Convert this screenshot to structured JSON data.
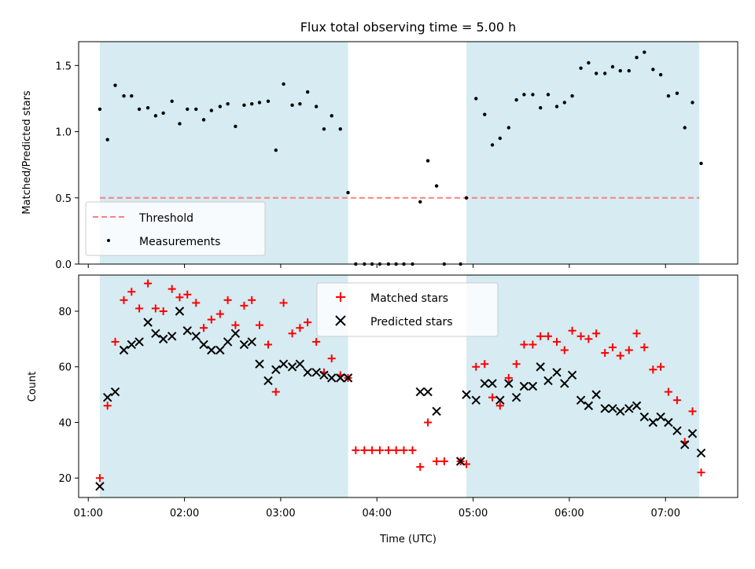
{
  "title": "Flux total observing time = 5.00 h",
  "colors": {
    "shade": "#add8e6",
    "threshold": "#ff7f7f",
    "matched": "#ff0000",
    "predicted": "#000000",
    "measurement": "#000000"
  },
  "chart_data": [
    {
      "type": "scatter",
      "ylabel": "Matched/Predicted stars",
      "xlim": [
        0.9,
        7.75
      ],
      "ylim": [
        0,
        1.68
      ],
      "yticks": [
        0.0,
        0.5,
        1.0,
        1.5
      ],
      "ytick_labels": [
        "0.0",
        "0.5",
        "1.0",
        "1.5"
      ],
      "shaded_intervals": [
        [
          1.12,
          3.7
        ],
        [
          4.93,
          7.35
        ]
      ],
      "threshold": {
        "name": "Threshold",
        "value": 0.5,
        "x_range": [
          1.12,
          7.35
        ]
      },
      "legend": [
        "Threshold",
        "Measurements"
      ],
      "legend_location": "lower-left",
      "series": [
        {
          "name": "Measurements",
          "x": [
            1.12,
            1.2,
            1.28,
            1.37,
            1.45,
            1.53,
            1.62,
            1.7,
            1.78,
            1.87,
            1.95,
            2.03,
            2.12,
            2.2,
            2.28,
            2.37,
            2.45,
            2.53,
            2.62,
            2.7,
            2.78,
            2.87,
            2.95,
            3.03,
            3.12,
            3.2,
            3.28,
            3.37,
            3.45,
            3.53,
            3.62,
            3.7,
            3.78,
            3.87,
            3.95,
            4.03,
            4.12,
            4.2,
            4.28,
            4.37,
            4.45,
            4.53,
            4.62,
            4.7,
            4.87,
            4.93,
            5.03,
            5.12,
            5.2,
            5.28,
            5.37,
            5.45,
            5.53,
            5.62,
            5.7,
            5.78,
            5.87,
            5.95,
            6.03,
            6.12,
            6.2,
            6.28,
            6.37,
            6.45,
            6.53,
            6.62,
            6.7,
            6.78,
            6.87,
            6.95,
            7.03,
            7.12,
            7.2,
            7.28,
            7.37
          ],
          "y": [
            1.17,
            0.94,
            1.35,
            1.27,
            1.27,
            1.17,
            1.18,
            1.12,
            1.14,
            1.23,
            1.06,
            1.17,
            1.17,
            1.09,
            1.16,
            1.19,
            1.21,
            1.04,
            1.2,
            1.21,
            1.22,
            1.23,
            0.86,
            1.36,
            1.2,
            1.21,
            1.3,
            1.19,
            1.02,
            1.12,
            1.02,
            0.54,
            0.0,
            0.0,
            0.0,
            0.0,
            0.0,
            0.0,
            0.0,
            0.0,
            0.47,
            0.78,
            0.59,
            0.0,
            0.0,
            0.5,
            1.25,
            1.13,
            0.9,
            0.95,
            1.03,
            1.24,
            1.28,
            1.28,
            1.18,
            1.28,
            1.19,
            1.22,
            1.27,
            1.48,
            1.52,
            1.44,
            1.44,
            1.49,
            1.46,
            1.46,
            1.56,
            1.6,
            1.47,
            1.43,
            1.27,
            1.29,
            1.03,
            1.22,
            0.76
          ]
        }
      ]
    },
    {
      "type": "scatter",
      "xlabel": "Time (UTC)",
      "ylabel": "Count",
      "xlim": [
        0.9,
        7.75
      ],
      "ylim": [
        13,
        93
      ],
      "xticks": [
        1,
        2,
        3,
        4,
        5,
        6,
        7
      ],
      "xtick_labels": [
        "01:00",
        "02:00",
        "03:00",
        "04:00",
        "05:00",
        "06:00",
        "07:00"
      ],
      "yticks": [
        20,
        40,
        60,
        80
      ],
      "ytick_labels": [
        "20",
        "40",
        "60",
        "80"
      ],
      "shaded_intervals": [
        [
          1.12,
          3.7
        ],
        [
          4.93,
          7.35
        ]
      ],
      "legend": [
        "Matched stars",
        "Predicted stars"
      ],
      "legend_location": "upper-center",
      "series": [
        {
          "name": "Matched stars",
          "x": [
            1.12,
            1.2,
            1.28,
            1.37,
            1.45,
            1.53,
            1.62,
            1.7,
            1.78,
            1.87,
            1.95,
            2.03,
            2.12,
            2.2,
            2.28,
            2.37,
            2.45,
            2.53,
            2.62,
            2.7,
            2.78,
            2.87,
            2.95,
            3.03,
            3.12,
            3.2,
            3.28,
            3.37,
            3.45,
            3.53,
            3.62,
            3.7,
            3.78,
            3.87,
            3.95,
            4.03,
            4.12,
            4.2,
            4.28,
            4.37,
            4.45,
            4.53,
            4.62,
            4.7,
            4.87,
            4.93,
            5.03,
            5.12,
            5.2,
            5.28,
            5.37,
            5.45,
            5.53,
            5.62,
            5.7,
            5.78,
            5.87,
            5.95,
            6.03,
            6.12,
            6.2,
            6.28,
            6.37,
            6.45,
            6.53,
            6.62,
            6.7,
            6.78,
            6.87,
            6.95,
            7.03,
            7.12,
            7.2,
            7.28,
            7.37
          ],
          "y": [
            20,
            46,
            69,
            84,
            87,
            81,
            90,
            81,
            80,
            88,
            85,
            86,
            83,
            74,
            77,
            79,
            84,
            75,
            82,
            84,
            75,
            68,
            51,
            83,
            72,
            74,
            76,
            69,
            58,
            63,
            57,
            56,
            30,
            30,
            30,
            30,
            30,
            30,
            30,
            30,
            24,
            40,
            26,
            26,
            26,
            25,
            60,
            61,
            49,
            46,
            56,
            61,
            68,
            68,
            71,
            71,
            69,
            66,
            73,
            71,
            70,
            72,
            65,
            67,
            64,
            66,
            72,
            67,
            59,
            60,
            51,
            48,
            33,
            44,
            22
          ]
        },
        {
          "name": "Predicted stars",
          "x": [
            1.12,
            1.2,
            1.28,
            1.37,
            1.45,
            1.53,
            1.62,
            1.7,
            1.78,
            1.87,
            1.95,
            2.03,
            2.12,
            2.2,
            2.28,
            2.37,
            2.45,
            2.53,
            2.62,
            2.7,
            2.78,
            2.87,
            2.95,
            3.03,
            3.12,
            3.2,
            3.28,
            3.37,
            3.45,
            3.53,
            3.62,
            3.7,
            4.45,
            4.53,
            4.62,
            4.87,
            4.93,
            5.03,
            5.12,
            5.2,
            5.28,
            5.37,
            5.45,
            5.53,
            5.62,
            5.7,
            5.78,
            5.87,
            5.95,
            6.03,
            6.12,
            6.2,
            6.28,
            6.37,
            6.45,
            6.53,
            6.62,
            6.7,
            6.78,
            6.87,
            6.95,
            7.03,
            7.12,
            7.2,
            7.28,
            7.37
          ],
          "y": [
            17,
            49,
            51,
            66,
            68,
            69,
            76,
            72,
            70,
            71,
            80,
            73,
            71,
            68,
            66,
            66,
            69,
            72,
            68,
            69,
            61,
            55,
            59,
            61,
            60,
            61,
            58,
            58,
            57,
            56,
            56,
            56,
            51,
            51,
            44,
            26,
            50,
            48,
            54,
            54,
            48,
            54,
            49,
            53,
            53,
            60,
            55,
            58,
            54,
            57,
            48,
            46,
            50,
            45,
            45,
            44,
            45,
            46,
            42,
            40,
            42,
            40,
            37,
            32,
            36,
            29
          ]
        }
      ]
    }
  ]
}
